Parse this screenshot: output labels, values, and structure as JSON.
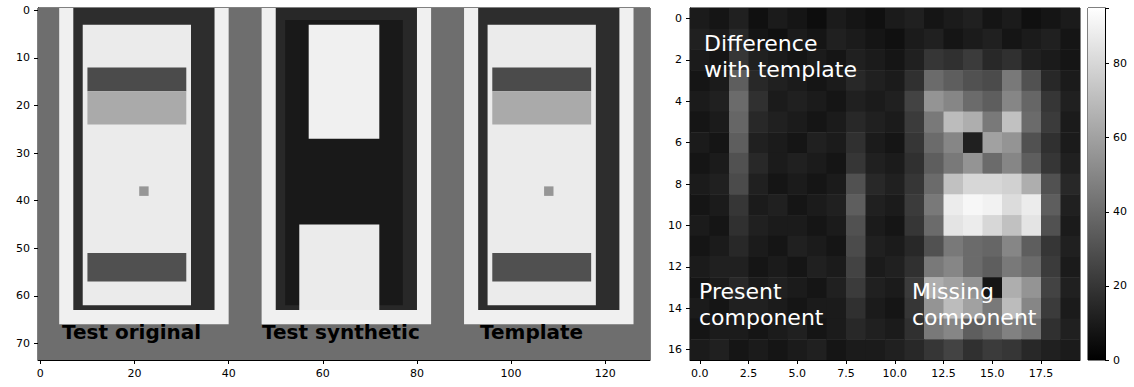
{
  "chart_data": [
    {
      "type": "image",
      "xlim": [
        -0.5,
        129.5
      ],
      "ylim": [
        -0.5,
        73.5
      ],
      "xticks": [
        0,
        20,
        40,
        60,
        80,
        100,
        120
      ],
      "yticks": [
        0,
        10,
        20,
        30,
        40,
        50,
        60,
        70
      ],
      "regions": [
        [
          -0.5,
          129.5,
          -0.5,
          73.5,
          110
        ],
        [
          4,
          40,
          -0.5,
          66,
          240
        ],
        [
          7,
          37,
          -0.5,
          63,
          45
        ],
        [
          9,
          32,
          3,
          62,
          235
        ],
        [
          10,
          31,
          12,
          17,
          75
        ],
        [
          10,
          31,
          17,
          24,
          170
        ],
        [
          10,
          31,
          51,
          57,
          80
        ],
        [
          21,
          23,
          37,
          39,
          150
        ],
        [
          47,
          83,
          -0.5,
          66,
          240
        ],
        [
          50,
          80,
          -0.5,
          63,
          40
        ],
        [
          52,
          77,
          2,
          62,
          25
        ],
        [
          57,
          72,
          3,
          27,
          240
        ],
        [
          55,
          72,
          45,
          63,
          235
        ],
        [
          90,
          126,
          -0.5,
          66,
          240
        ],
        [
          93,
          123,
          -0.5,
          63,
          45
        ],
        [
          95,
          118,
          3,
          62,
          235
        ],
        [
          96,
          117,
          12,
          17,
          75
        ],
        [
          96,
          117,
          17,
          24,
          170
        ],
        [
          96,
          117,
          51,
          57,
          80
        ],
        [
          107,
          109,
          37,
          39,
          150
        ]
      ],
      "annotations": [
        "Test original",
        "Test synthetic",
        "Template"
      ]
    },
    {
      "type": "heatmap",
      "xlim": [
        -0.5,
        19.5
      ],
      "ylim": [
        -0.5,
        16.5
      ],
      "xticks": [
        {
          "value": 0,
          "label": "0.0"
        },
        {
          "value": 2.5,
          "label": "2.5"
        },
        {
          "value": 5,
          "label": "5.0"
        },
        {
          "value": 7.5,
          "label": "7.5"
        },
        {
          "value": 10,
          "label": "10.0"
        },
        {
          "value": 12.5,
          "label": "12.5"
        },
        {
          "value": 15,
          "label": "15.0"
        },
        {
          "value": 17.5,
          "label": "17.5"
        }
      ],
      "yticks": [
        0,
        2,
        4,
        6,
        8,
        10,
        12,
        14,
        16
      ],
      "cells": [
        [
          10,
          8,
          12,
          6,
          10,
          8,
          5,
          10,
          8,
          6,
          10,
          12,
          8,
          10,
          12,
          8,
          10,
          6,
          8,
          10
        ],
        [
          12,
          10,
          15,
          8,
          6,
          10,
          8,
          12,
          10,
          8,
          6,
          10,
          12,
          8,
          10,
          12,
          8,
          10,
          12,
          8
        ],
        [
          10,
          8,
          20,
          12,
          10,
          8,
          10,
          8,
          12,
          10,
          8,
          12,
          20,
          18,
          22,
          15,
          18,
          12,
          10,
          8
        ],
        [
          8,
          10,
          35,
          15,
          12,
          10,
          8,
          10,
          15,
          12,
          10,
          18,
          40,
          35,
          30,
          28,
          45,
          30,
          15,
          10
        ],
        [
          10,
          12,
          40,
          18,
          10,
          12,
          10,
          8,
          12,
          10,
          12,
          25,
          55,
          50,
          40,
          35,
          50,
          38,
          20,
          12
        ],
        [
          8,
          10,
          38,
          15,
          12,
          10,
          8,
          10,
          15,
          12,
          10,
          22,
          45,
          70,
          65,
          45,
          72,
          40,
          22,
          10
        ],
        [
          10,
          8,
          35,
          12,
          10,
          8,
          12,
          10,
          18,
          10,
          8,
          20,
          40,
          50,
          12,
          60,
          55,
          30,
          18,
          10
        ],
        [
          8,
          10,
          30,
          15,
          10,
          12,
          10,
          8,
          20,
          12,
          10,
          18,
          35,
          45,
          55,
          40,
          50,
          35,
          20,
          12
        ],
        [
          10,
          12,
          28,
          12,
          8,
          10,
          8,
          10,
          30,
          15,
          12,
          20,
          40,
          72,
          80,
          80,
          78,
          65,
          30,
          15
        ],
        [
          8,
          10,
          20,
          10,
          12,
          8,
          10,
          12,
          35,
          12,
          10,
          22,
          45,
          88,
          92,
          90,
          82,
          88,
          35,
          12
        ],
        [
          10,
          8,
          18,
          12,
          10,
          10,
          8,
          10,
          30,
          10,
          8,
          20,
          40,
          85,
          88,
          80,
          72,
          85,
          30,
          10
        ],
        [
          8,
          10,
          15,
          10,
          8,
          12,
          10,
          8,
          28,
          12,
          10,
          15,
          30,
          45,
          40,
          38,
          50,
          35,
          20,
          12
        ],
        [
          10,
          12,
          12,
          8,
          10,
          8,
          12,
          10,
          25,
          10,
          12,
          18,
          45,
          50,
          40,
          35,
          45,
          40,
          22,
          10
        ],
        [
          8,
          10,
          15,
          10,
          12,
          10,
          8,
          12,
          22,
          12,
          10,
          22,
          65,
          60,
          55,
          8,
          65,
          55,
          25,
          12
        ],
        [
          10,
          8,
          12,
          12,
          10,
          8,
          10,
          10,
          18,
          10,
          8,
          20,
          55,
          70,
          60,
          45,
          70,
          50,
          22,
          10
        ],
        [
          8,
          10,
          10,
          8,
          10,
          12,
          8,
          10,
          15,
          12,
          10,
          18,
          45,
          50,
          35,
          40,
          48,
          42,
          18,
          12
        ],
        [
          10,
          12,
          8,
          10,
          8,
          10,
          12,
          8,
          10,
          10,
          12,
          15,
          20,
          25,
          18,
          22,
          20,
          15,
          12,
          10
        ]
      ],
      "colorbar": {
        "range": [
          0,
          95
        ],
        "ticks": [
          0,
          20,
          40,
          60,
          80
        ]
      },
      "annotations": [
        "Difference\nwith template",
        "Present\ncomponent",
        "Missing\ncomponent"
      ]
    }
  ]
}
